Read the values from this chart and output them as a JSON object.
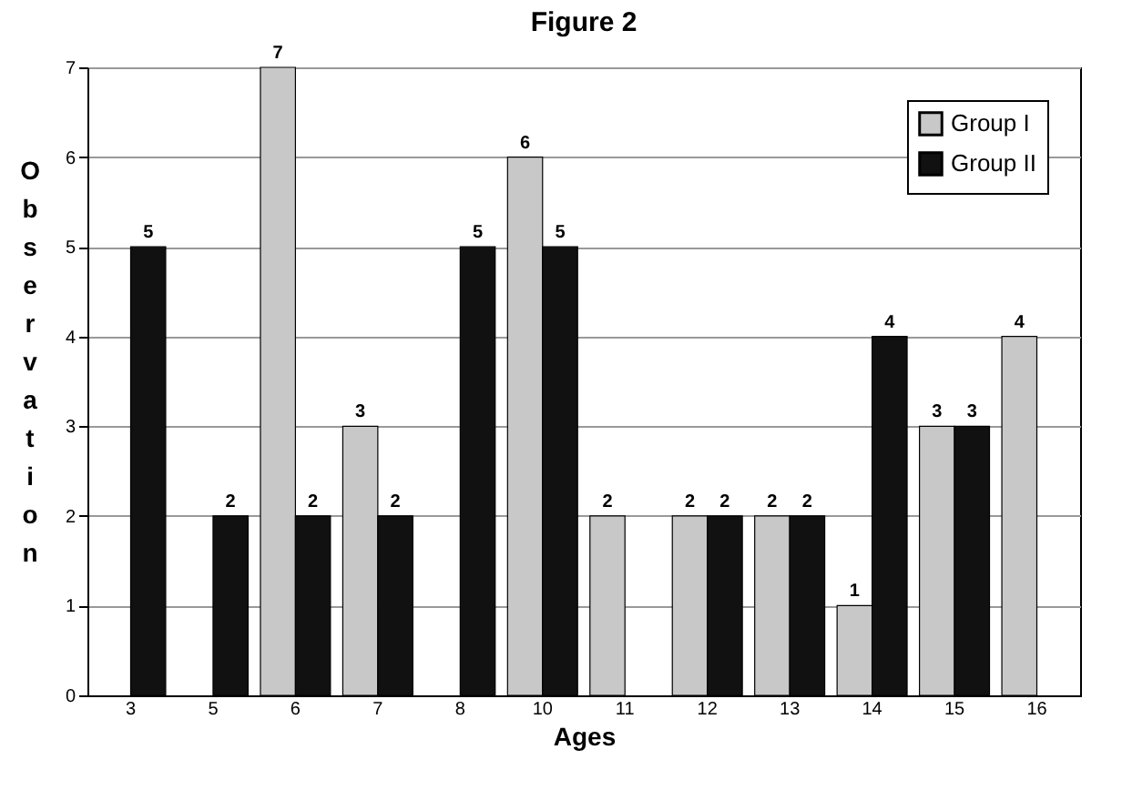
{
  "chart_data": {
    "type": "bar",
    "title": "Figure 2",
    "xlabel": "Ages",
    "ylabel": "Observation",
    "categories": [
      "3",
      "5",
      "6",
      "7",
      "8",
      "10",
      "11",
      "12",
      "13",
      "14",
      "15",
      "16"
    ],
    "series": [
      {
        "name": "Group I",
        "color": "#c8c8c8",
        "values": [
          null,
          null,
          7,
          3,
          null,
          6,
          2,
          2,
          2,
          1,
          3,
          4
        ]
      },
      {
        "name": "Group II",
        "color": "#111111",
        "values": [
          5,
          2,
          2,
          2,
          5,
          5,
          null,
          2,
          2,
          4,
          3,
          null
        ]
      }
    ],
    "ylim": [
      0,
      7
    ],
    "yticks": [
      0,
      1,
      2,
      3,
      4,
      5,
      6,
      7
    ],
    "grid": "y",
    "legend": "top right",
    "data_labels": true
  }
}
